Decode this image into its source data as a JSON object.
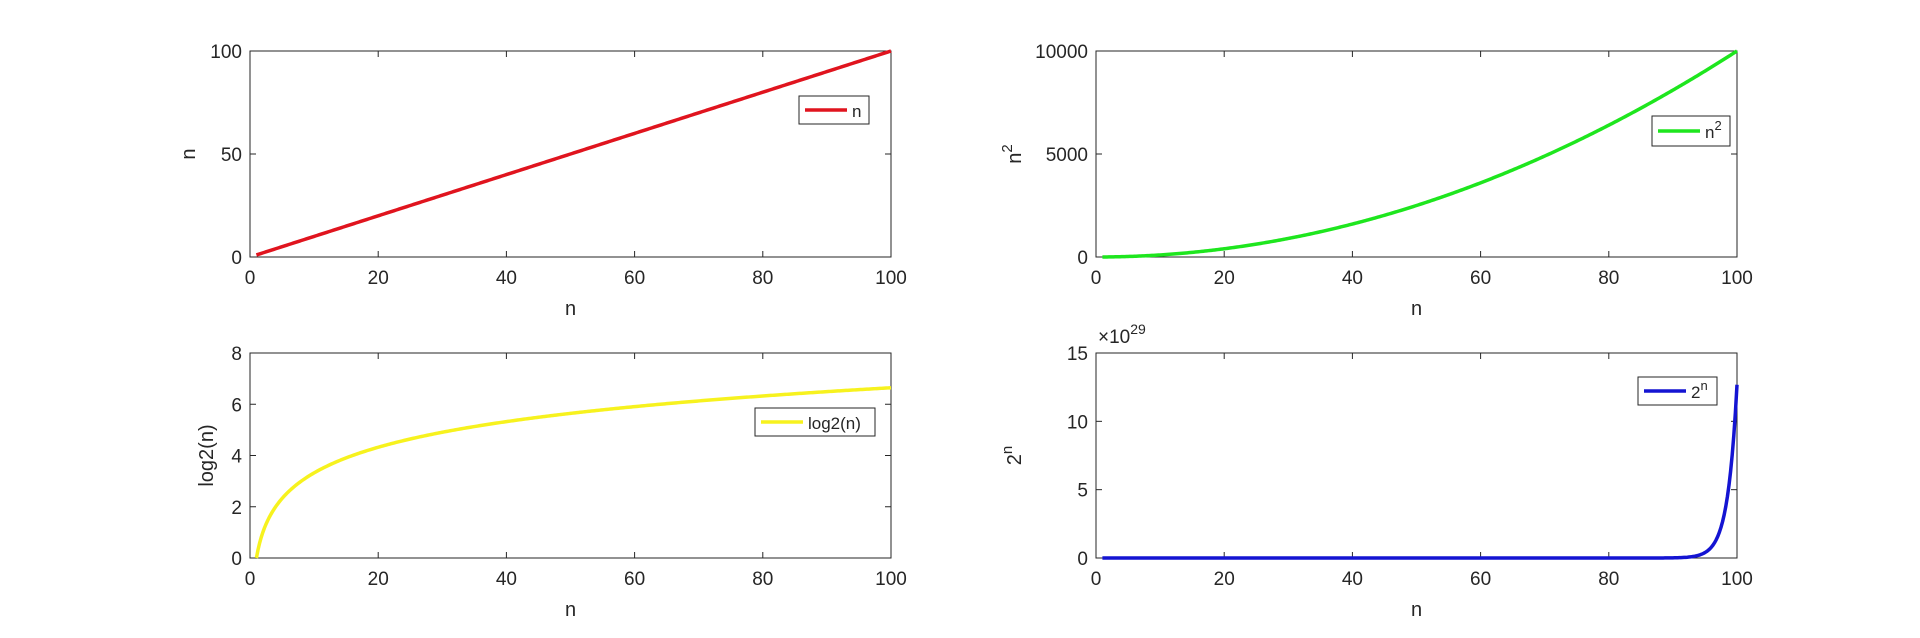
{
  "chart_data": [
    {
      "type": "line",
      "x": [
        1,
        100
      ],
      "xlim": [
        0,
        100
      ],
      "ylim": [
        0,
        100
      ],
      "xticks": [
        "0",
        "20",
        "40",
        "60",
        "80",
        "100"
      ],
      "yticks": [
        "0",
        "50",
        "100"
      ],
      "xlabel": "n",
      "ylabel": "n",
      "ylabel_sup": "",
      "exponent_label": "",
      "series": [
        {
          "name": "n",
          "name_sup": "",
          "color": "#e0141e",
          "formula": "n",
          "values": [
            1,
            100
          ]
        }
      ],
      "legend": "right"
    },
    {
      "type": "line",
      "x": [
        1,
        100
      ],
      "xlim": [
        0,
        100
      ],
      "ylim": [
        0,
        10000
      ],
      "xticks": [
        "0",
        "20",
        "40",
        "60",
        "80",
        "100"
      ],
      "yticks": [
        "0",
        "5000",
        "10000"
      ],
      "xlabel": "n",
      "ylabel": "n",
      "ylabel_sup": "2",
      "exponent_label": "",
      "series": [
        {
          "name": "n",
          "name_sup": "2",
          "color": "#1ee61e",
          "formula": "n^2",
          "values": [
            1,
            10000
          ]
        }
      ],
      "legend": "right"
    },
    {
      "type": "line",
      "x": [
        1,
        100
      ],
      "xlim": [
        0,
        100
      ],
      "ylim": [
        0,
        8
      ],
      "xticks": [
        "0",
        "20",
        "40",
        "60",
        "80",
        "100"
      ],
      "yticks": [
        "0",
        "2",
        "4",
        "6",
        "8"
      ],
      "xlabel": "n",
      "ylabel": "log2(n)",
      "ylabel_sup": "",
      "exponent_label": "",
      "series": [
        {
          "name": "log2(n)",
          "name_sup": "",
          "color": "#f7f21e",
          "formula": "log2(n)",
          "values": [
            0,
            6.64
          ]
        }
      ],
      "legend": "right"
    },
    {
      "type": "line",
      "x": [
        1,
        100
      ],
      "xlim": [
        0,
        100
      ],
      "ylim": [
        0,
        15
      ],
      "xticks": [
        "0",
        "20",
        "40",
        "60",
        "80",
        "100"
      ],
      "yticks": [
        "0",
        "5",
        "10",
        "15"
      ],
      "xlabel": "n",
      "ylabel": "2",
      "ylabel_sup": "n",
      "exponent_label": "×10",
      "exponent_sup": "29",
      "series": [
        {
          "name": "2",
          "name_sup": "n",
          "color": "#1414d2",
          "formula": "2^n",
          "values": [
            2,
            12.68
          ]
        }
      ],
      "legend": "top-right"
    }
  ]
}
